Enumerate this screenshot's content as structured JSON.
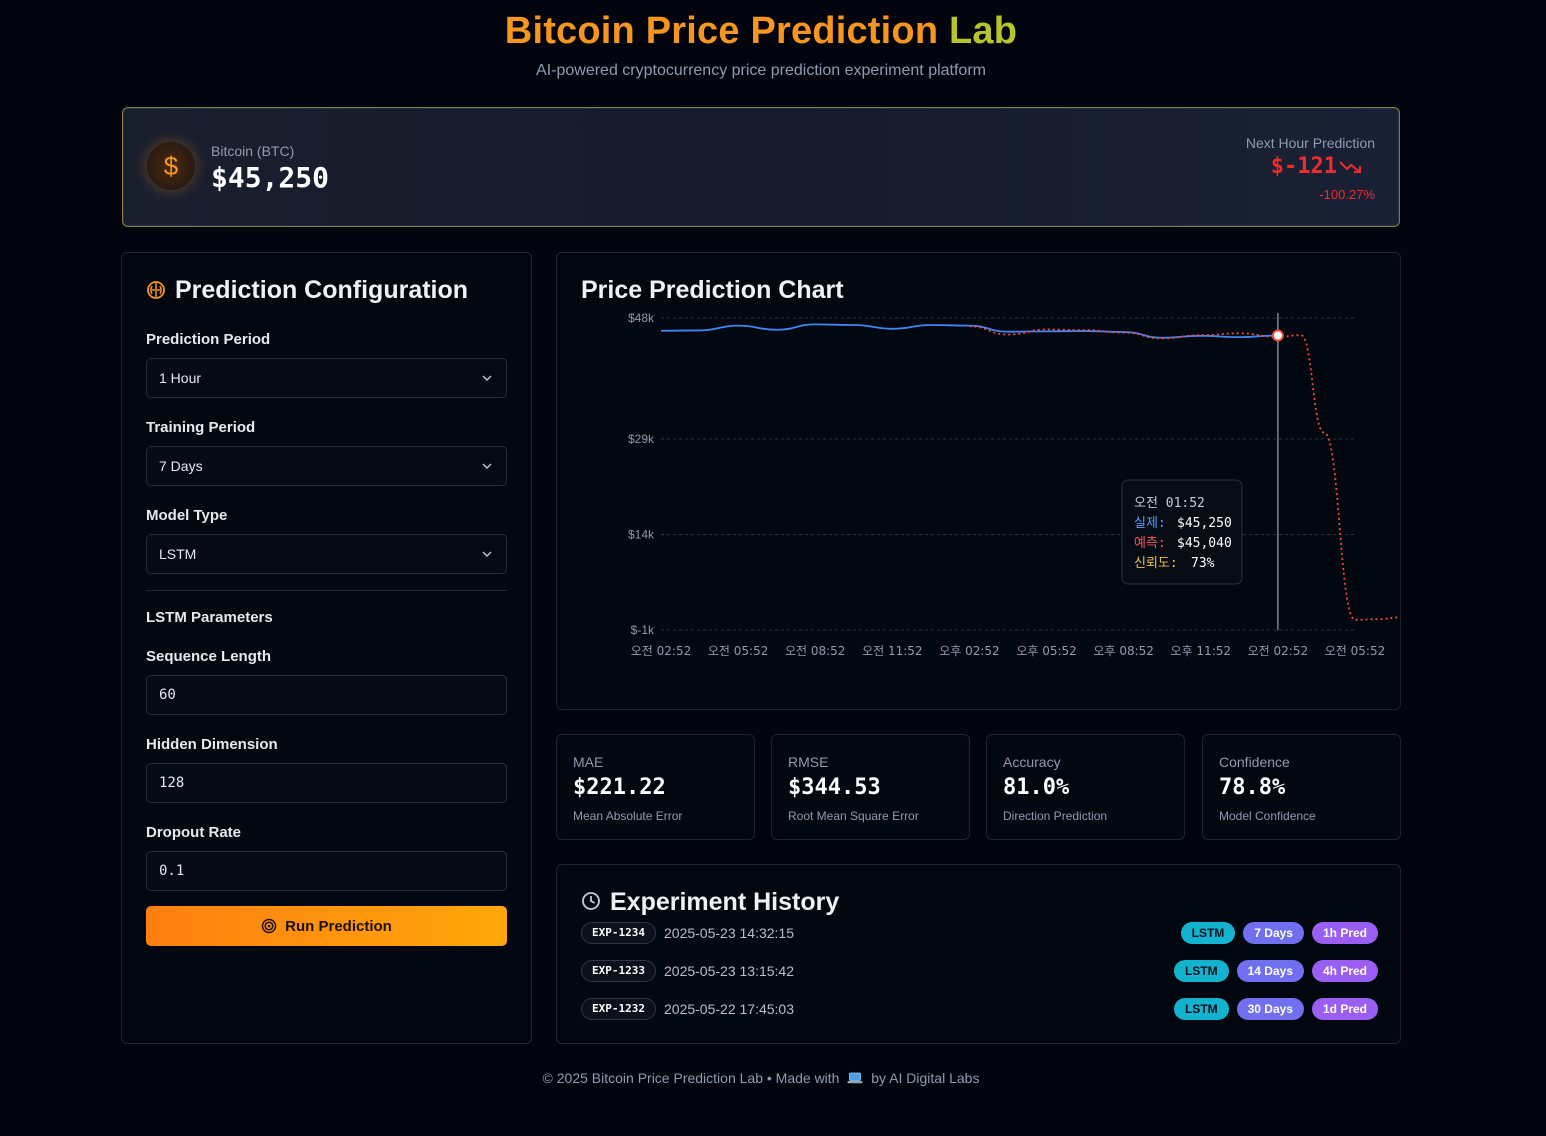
{
  "header": {
    "title_part1": "Bitcoin Price Prediction",
    "title_part2": "Lab",
    "subtitle": "AI-powered cryptocurrency price prediction experiment platform"
  },
  "banner": {
    "coin_icon": "dollar-icon",
    "coin_name": "Bitcoin (BTC)",
    "current_price": "$45,250",
    "prediction_label": "Next Hour Prediction",
    "prediction_value": "$-121",
    "prediction_change": "-100.27%",
    "trend_icon": "trending-down-icon",
    "down_color": "#ef2b2b"
  },
  "config": {
    "title": "Prediction Configuration",
    "prediction_period": {
      "label": "Prediction Period",
      "value": "1 Hour"
    },
    "training_period": {
      "label": "Training Period",
      "value": "7 Days"
    },
    "model_type": {
      "label": "Model Type",
      "value": "LSTM"
    },
    "params_title": "LSTM Parameters",
    "sequence_length": {
      "label": "Sequence Length",
      "value": "60"
    },
    "hidden_dimension": {
      "label": "Hidden Dimension",
      "value": "128"
    },
    "dropout_rate": {
      "label": "Dropout Rate",
      "value": "0.1"
    },
    "run_label": "Run Prediction"
  },
  "chart_data": {
    "type": "line",
    "title": "Price Prediction Chart",
    "y_ticks": [
      "$48k",
      "$29k",
      "$14k",
      "$-1k"
    ],
    "x_ticks": [
      "오전 02:52",
      "오전 05:52",
      "오전 08:52",
      "오전 11:52",
      "오후 02:52",
      "오후 05:52",
      "오후 08:52",
      "오후 11:52",
      "오전 02:52",
      "오전 05:52"
    ],
    "grid": true,
    "series": [
      {
        "color": "#3f86f5",
        "style": "solid",
        "x_index": [
          0,
          0.5,
          1,
          1.5,
          2,
          2.5,
          3,
          3.5,
          4,
          4.5,
          5,
          5.5,
          6,
          6.5,
          7,
          7.5,
          8
        ],
        "values": [
          46000,
          46050,
          46800,
          46150,
          47000,
          46900,
          46300,
          46900,
          46800,
          45850,
          45900,
          45950,
          45800,
          44900,
          45200,
          45000,
          45250
        ]
      },
      {
        "color": "#ef4b3b",
        "style": "dotted",
        "x_index": [
          4,
          4.5,
          5,
          5.5,
          6,
          6.5,
          7,
          7.5,
          8,
          8.3,
          8.6,
          9,
          9.3,
          9.6,
          9.9
        ],
        "values": [
          46700,
          45400,
          46200,
          46100,
          45700,
          44800,
          45300,
          45600,
          45040,
          45300,
          30000,
          600,
          700,
          1000,
          500
        ]
      }
    ],
    "marker_x_index": 8,
    "tooltip": {
      "time": "오전 01:52",
      "actual_label": "실제:",
      "actual_value": "$45,250",
      "pred_label": "예측:",
      "pred_value": "$45,040",
      "conf_label": "신뢰도:",
      "conf_value": "73%",
      "actual_color": "#5b9cf5",
      "pred_color": "#ef5b5b",
      "conf_color": "#f0c23a"
    }
  },
  "metrics": [
    {
      "label": "MAE",
      "value": "$221.22",
      "desc": "Mean Absolute Error"
    },
    {
      "label": "RMSE",
      "value": "$344.53",
      "desc": "Root Mean Square Error"
    },
    {
      "label": "Accuracy",
      "value": "81.0%",
      "desc": "Direction Prediction"
    },
    {
      "label": "Confidence",
      "value": "78.8%",
      "desc": "Model Confidence"
    }
  ],
  "history": {
    "title": "Experiment History",
    "rows": [
      {
        "id": "EXP-1234",
        "date": "2025-05-23 14:32:15",
        "model": "LSTM",
        "days": "7 Days",
        "pred": "1h Pred"
      },
      {
        "id": "EXP-1233",
        "date": "2025-05-23 13:15:42",
        "model": "LSTM",
        "days": "14 Days",
        "pred": "4h Pred"
      },
      {
        "id": "EXP-1232",
        "date": "2025-05-22 17:45:03",
        "model": "LSTM",
        "days": "30 Days",
        "pred": "1d Pred"
      }
    ]
  },
  "footer": {
    "text_before": "© 2025 Bitcoin Price Prediction Lab • Made with",
    "icon": "laptop-icon",
    "text_after": "by AI Digital Labs"
  }
}
